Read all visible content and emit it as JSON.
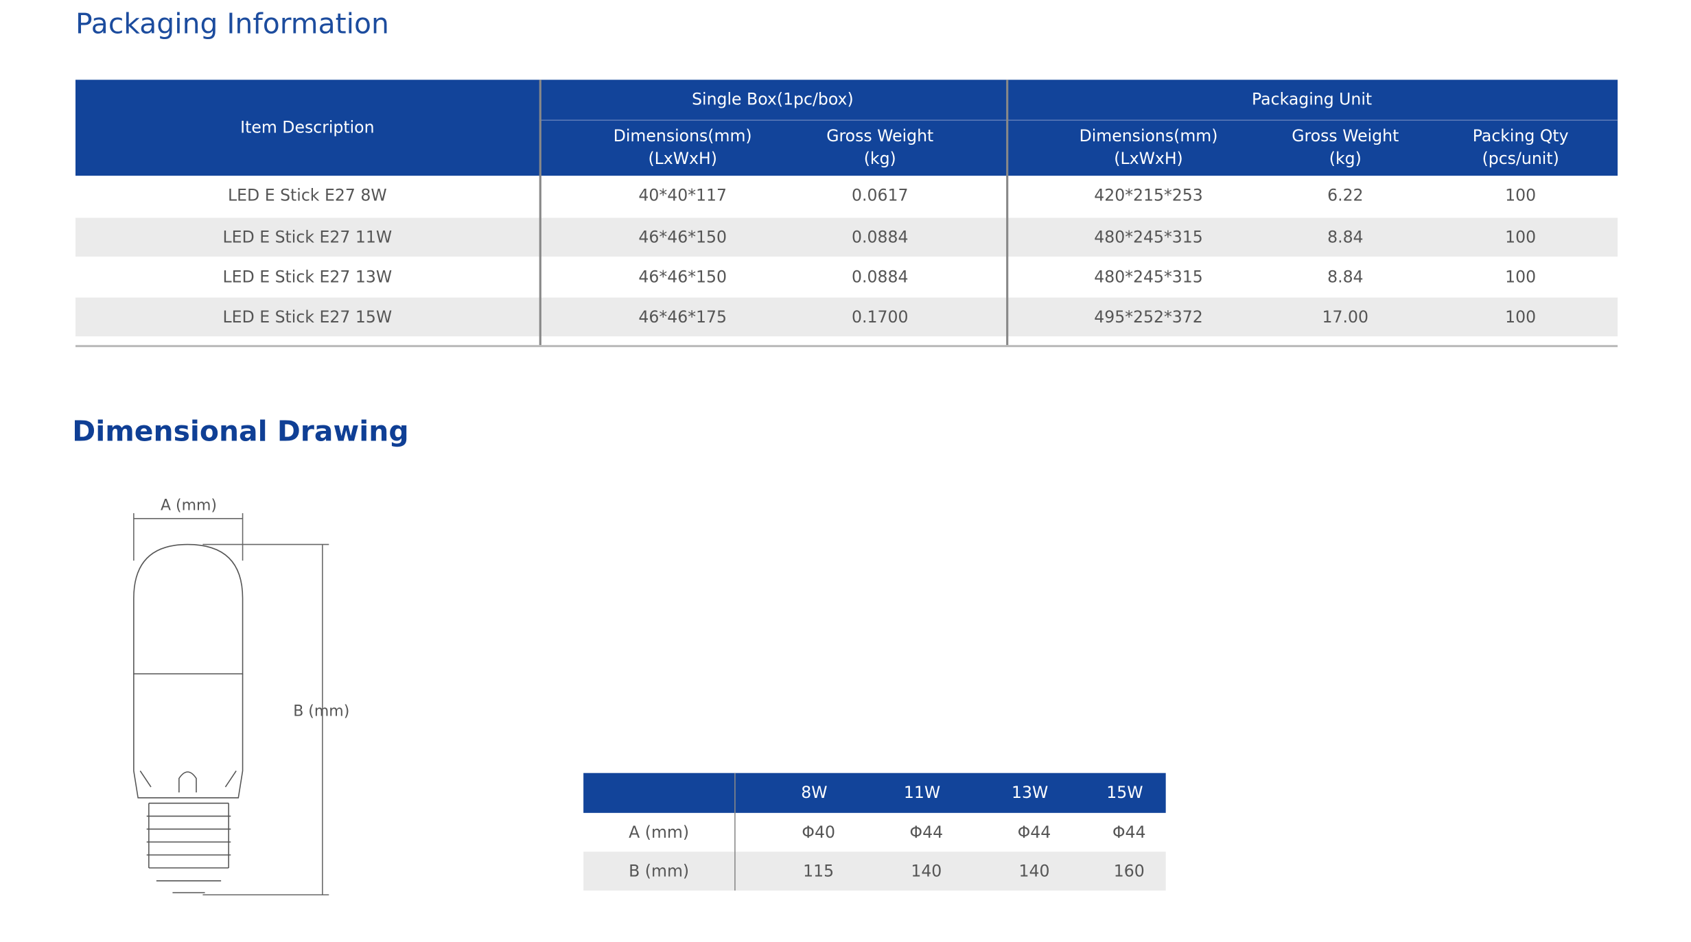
{
  "packaging": {
    "title": "Packaging Information",
    "item_header": "Item Description",
    "single_box": "Single Box(1pc/box)",
    "packaging_unit": "Packaging Unit",
    "columns": [
      {
        "label": "Dimensions(mm)",
        "unit": "(LxWxH)"
      },
      {
        "label": "Gross Weight",
        "unit": "(kg)"
      },
      {
        "label": "Dimensions(mm)",
        "unit": "(LxWxH)"
      },
      {
        "label": "Gross Weight",
        "unit": "(kg)"
      },
      {
        "label": "Packing Qty",
        "unit": "(pcs/unit)"
      }
    ],
    "rows": [
      [
        "LED E Stick E27 8W",
        "40*40*117",
        "0.0617",
        "420*215*253",
        "6.22",
        "100"
      ],
      [
        "LED E Stick E27 11W",
        "46*46*150",
        "0.0884",
        "480*245*315",
        "8.84",
        "100"
      ],
      [
        "LED E Stick E27 13W",
        "46*46*150",
        "0.0884",
        "480*245*315",
        "8.84",
        "100"
      ],
      [
        "LED E Stick E27 15W",
        "46*46*175",
        "0.1700",
        "495*252*372",
        "17.00",
        "100"
      ]
    ]
  },
  "drawing": {
    "title": "Dimensional Drawing",
    "label_a": "A (mm)",
    "label_b": "B (mm)",
    "header": [
      "8W",
      "11W",
      "13W",
      "15W"
    ],
    "rows": [
      {
        "label": "A (mm)",
        "values": [
          "Φ40",
          "Φ44",
          "Φ44",
          "Φ44"
        ]
      },
      {
        "label": "B (mm)",
        "values": [
          "115",
          "140",
          "140",
          "160"
        ]
      }
    ]
  }
}
